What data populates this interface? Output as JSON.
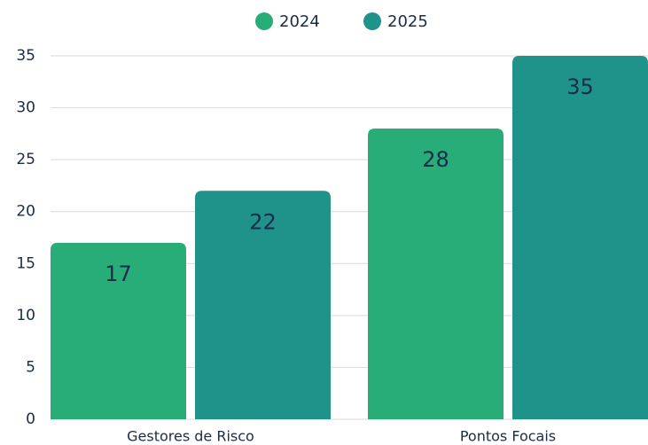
{
  "chart_data": {
    "type": "bar",
    "categories": [
      "Gestores de Risco",
      "Pontos Focais"
    ],
    "series": [
      {
        "name": "2024",
        "color": "#28ad78",
        "values": [
          17,
          28
        ]
      },
      {
        "name": "2025",
        "color": "#1f928a",
        "values": [
          22,
          35
        ]
      }
    ],
    "ylim": [
      0,
      35
    ],
    "yticks": [
      0,
      5,
      10,
      15,
      20,
      25,
      30,
      35
    ],
    "grid": true,
    "legend": "top"
  }
}
